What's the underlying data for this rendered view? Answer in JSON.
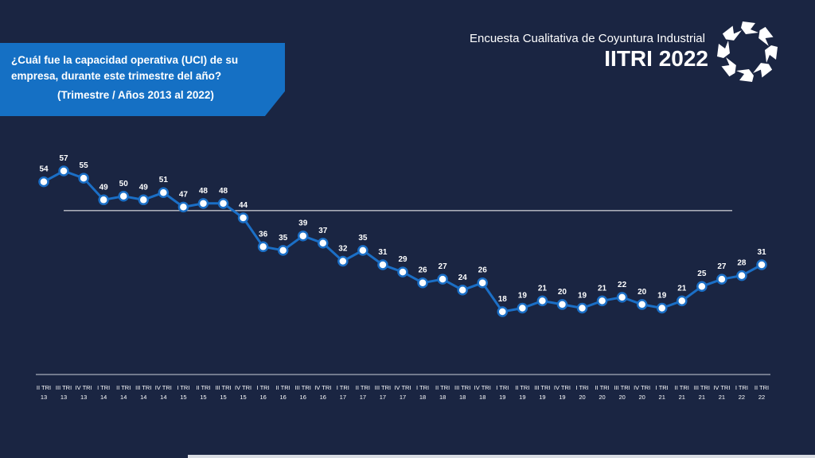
{
  "header": {
    "survey_title": "Encuesta Cualitativa de Coyuntura Industrial",
    "edition": "IITRI 2022",
    "logo_icon": "arrows-circle-logo-icon"
  },
  "question": {
    "line1": "¿Cuál fue la capacidad operativa (UCI) de su empresa, durante este trimestre del año?",
    "line2": "(Trimestre / Años 2013 al 2022)"
  },
  "colors": {
    "background": "#1a2542",
    "accent": "#1570c4",
    "line": "#1b6fc6",
    "marker_fill": "#ffffff"
  },
  "chart_data": {
    "type": "line",
    "title": "",
    "xlabel": "",
    "ylabel": "",
    "ylim": [
      0,
      60
    ],
    "grid": false,
    "categories": [
      [
        "II TRI",
        "13"
      ],
      [
        "III TRI",
        "13"
      ],
      [
        "IV TRI",
        "13"
      ],
      [
        "I TRI",
        "14"
      ],
      [
        "II TRI",
        "14"
      ],
      [
        "III TRI",
        "14"
      ],
      [
        "IV TRI",
        "14"
      ],
      [
        "I TRI",
        "15"
      ],
      [
        "II TRI",
        "15"
      ],
      [
        "III TRI",
        "15"
      ],
      [
        "IV TRI",
        "15"
      ],
      [
        "I TRI",
        "16"
      ],
      [
        "II TRI",
        "16"
      ],
      [
        "III TRI",
        "16"
      ],
      [
        "IV TRI",
        "16"
      ],
      [
        "I TRI",
        "17"
      ],
      [
        "II TRI",
        "17"
      ],
      [
        "III TRI",
        "17"
      ],
      [
        "IV TRI",
        "17"
      ],
      [
        "I TRI",
        "18"
      ],
      [
        "II TRI",
        "18"
      ],
      [
        "III TRI",
        "18"
      ],
      [
        "IV TRI",
        "18"
      ],
      [
        "I TRI",
        "19"
      ],
      [
        "II TRI",
        "19"
      ],
      [
        "III TRI",
        "19"
      ],
      [
        "IV TRI",
        "19"
      ],
      [
        "I TRI",
        "20"
      ],
      [
        "II TRI",
        "20"
      ],
      [
        "III TRI",
        "20"
      ],
      [
        "IV TRI",
        "20"
      ],
      [
        "I TRI",
        "21"
      ],
      [
        "II TRI",
        "21"
      ],
      [
        "III TRI",
        "21"
      ],
      [
        "IV TRI",
        "21"
      ],
      [
        "I TRI",
        "22"
      ],
      [
        "II TRI",
        "22"
      ]
    ],
    "series": [
      {
        "values": [
          54,
          57,
          55,
          49,
          50,
          49,
          51,
          47,
          48,
          48,
          44,
          36,
          35,
          39,
          37,
          32,
          35,
          31,
          29,
          26,
          27,
          24,
          26,
          18,
          19,
          21,
          20,
          19,
          21,
          22,
          20,
          19,
          21,
          25,
          27,
          28,
          31
        ]
      }
    ],
    "reference_line": 46
  }
}
